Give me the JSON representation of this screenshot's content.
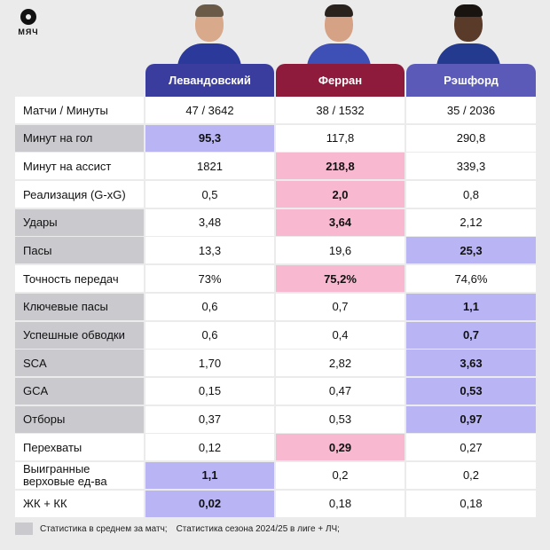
{
  "brand": {
    "logo_text": "МЯЧ"
  },
  "colors": {
    "lewandowski": "#3b3d9e",
    "ferran": "#8e1a3c",
    "rashford": "#5b5ab8",
    "white": "#ffffff",
    "gray": "#c9c9ce",
    "lavender": "#b9b5f5",
    "pink": "#f8b8cf"
  },
  "players": [
    {
      "name": "Левандовский"
    },
    {
      "name": "Ферран"
    },
    {
      "name": "Рэшфорд"
    }
  ],
  "rows": [
    {
      "label": "Матчи / Минуты",
      "values": [
        "47 / 3642",
        "38 / 1532",
        "35 / 2036"
      ]
    },
    {
      "label": "Минут на гол",
      "values": [
        "95,3",
        "117,8",
        "290,8"
      ]
    },
    {
      "label": "Минут на ассист",
      "values": [
        "1821",
        "218,8",
        "339,3"
      ]
    },
    {
      "label": "Реализация (G-xG)",
      "values": [
        "0,5",
        "2,0",
        "0,8"
      ]
    },
    {
      "label": "Удары",
      "values": [
        "3,48",
        "3,64",
        "2,12"
      ]
    },
    {
      "label": "Пасы",
      "values": [
        "13,3",
        "19,6",
        "25,3"
      ]
    },
    {
      "label": "Точность передач",
      "values": [
        "73%",
        "75,2%",
        "74,6%"
      ]
    },
    {
      "label": "Ключевые пасы",
      "values": [
        "0,6",
        "0,7",
        "1,1"
      ]
    },
    {
      "label": "Успешные обводки",
      "values": [
        "0,6",
        "0,4",
        "0,7"
      ]
    },
    {
      "label": "SCA",
      "values": [
        "1,70",
        "2,82",
        "3,63"
      ]
    },
    {
      "label": "GCA",
      "values": [
        "0,15",
        "0,47",
        "0,53"
      ]
    },
    {
      "label": "Отборы",
      "values": [
        "0,37",
        "0,53",
        "0,97"
      ]
    },
    {
      "label": "Перехваты",
      "values": [
        "0,12",
        "0,29",
        "0,27"
      ]
    },
    {
      "label": "Выигранные верховые ед-ва",
      "values": [
        "1,1",
        "0,2",
        "0,2"
      ]
    },
    {
      "label": "ЖК + КК",
      "values": [
        "0,02",
        "0,18",
        "0,18"
      ]
    }
  ],
  "legend": {
    "text1": "Статистика в среднем за матч;",
    "text2": "Статистика сезона 2024/25 в лиге + ЛЧ;"
  }
}
